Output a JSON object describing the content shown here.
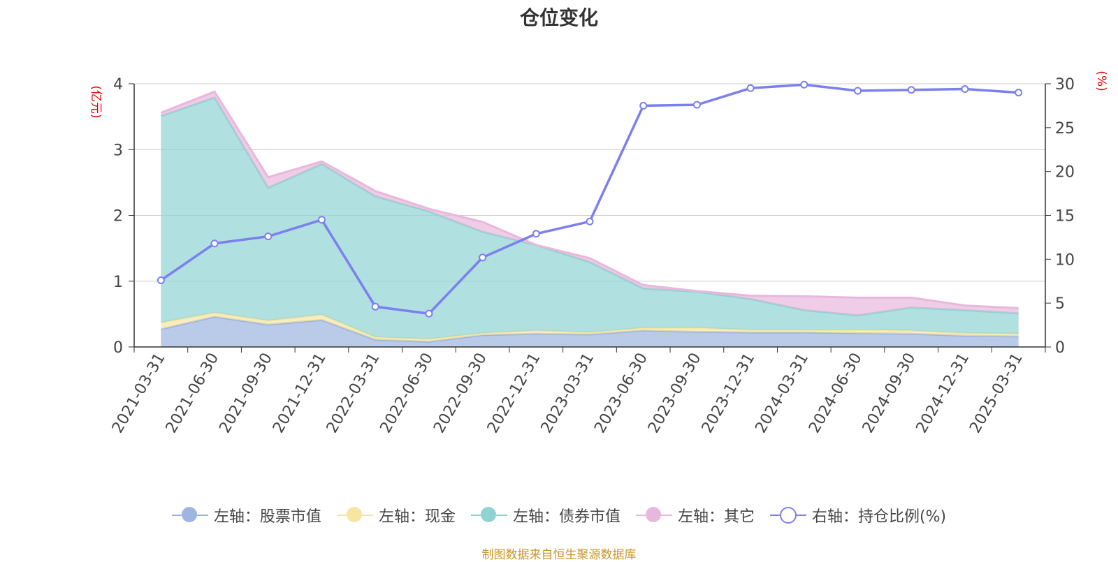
{
  "chart_data": {
    "type": "area",
    "title": "仓位变化",
    "x": [
      "2021-03-31",
      "2021-06-30",
      "2021-09-30",
      "2021-12-31",
      "2022-03-31",
      "2022-06-30",
      "2022-09-30",
      "2022-12-31",
      "2023-03-31",
      "2023-06-30",
      "2023-09-30",
      "2023-12-31",
      "2024-03-31",
      "2024-06-30",
      "2024-09-30",
      "2024-12-31",
      "2025-03-31"
    ],
    "left_axis": {
      "label": "(亿元)",
      "ylim": [
        0,
        4
      ],
      "ticks": [
        0,
        1,
        2,
        3,
        4
      ]
    },
    "right_axis": {
      "label": "(%)",
      "ylim": [
        0,
        30
      ],
      "ticks": [
        0,
        5,
        10,
        15,
        20,
        25,
        30
      ]
    },
    "stacked": true,
    "series": [
      {
        "name": "左轴：股票市值",
        "axis": "left",
        "color": "#9db5e0",
        "values": [
          0.27,
          0.46,
          0.34,
          0.41,
          0.11,
          0.08,
          0.18,
          0.2,
          0.19,
          0.25,
          0.23,
          0.22,
          0.22,
          0.21,
          0.2,
          0.17,
          0.16
        ]
      },
      {
        "name": "左轴：现金",
        "axis": "left",
        "color": "#f7e6a3",
        "values": [
          0.1,
          0.06,
          0.06,
          0.08,
          0.04,
          0.04,
          0.03,
          0.05,
          0.03,
          0.04,
          0.06,
          0.04,
          0.04,
          0.05,
          0.05,
          0.04,
          0.04
        ]
      },
      {
        "name": "左轴：债券市值",
        "axis": "left",
        "color": "#8fd3d3",
        "values": [
          3.14,
          3.27,
          2.02,
          2.29,
          2.14,
          1.94,
          1.54,
          1.3,
          1.07,
          0.6,
          0.55,
          0.47,
          0.3,
          0.22,
          0.35,
          0.35,
          0.31
        ]
      },
      {
        "name": "左轴：其它",
        "axis": "left",
        "color": "#e8b8dc",
        "values": [
          0.05,
          0.09,
          0.16,
          0.04,
          0.08,
          0.04,
          0.15,
          0.0,
          0.06,
          0.05,
          0.01,
          0.05,
          0.21,
          0.27,
          0.15,
          0.07,
          0.08
        ]
      },
      {
        "name": "右轴：持仓比例(%)",
        "axis": "right",
        "color": "#7b7ff0",
        "type": "line",
        "values": [
          7.6,
          11.8,
          12.6,
          14.5,
          4.6,
          3.8,
          10.2,
          12.9,
          14.3,
          27.5,
          27.6,
          29.5,
          29.9,
          29.2,
          29.3,
          29.4,
          29.0
        ]
      }
    ],
    "grid": true,
    "legend_position": "bottom"
  },
  "source_note": "制图数据来自恒生聚源数据库"
}
